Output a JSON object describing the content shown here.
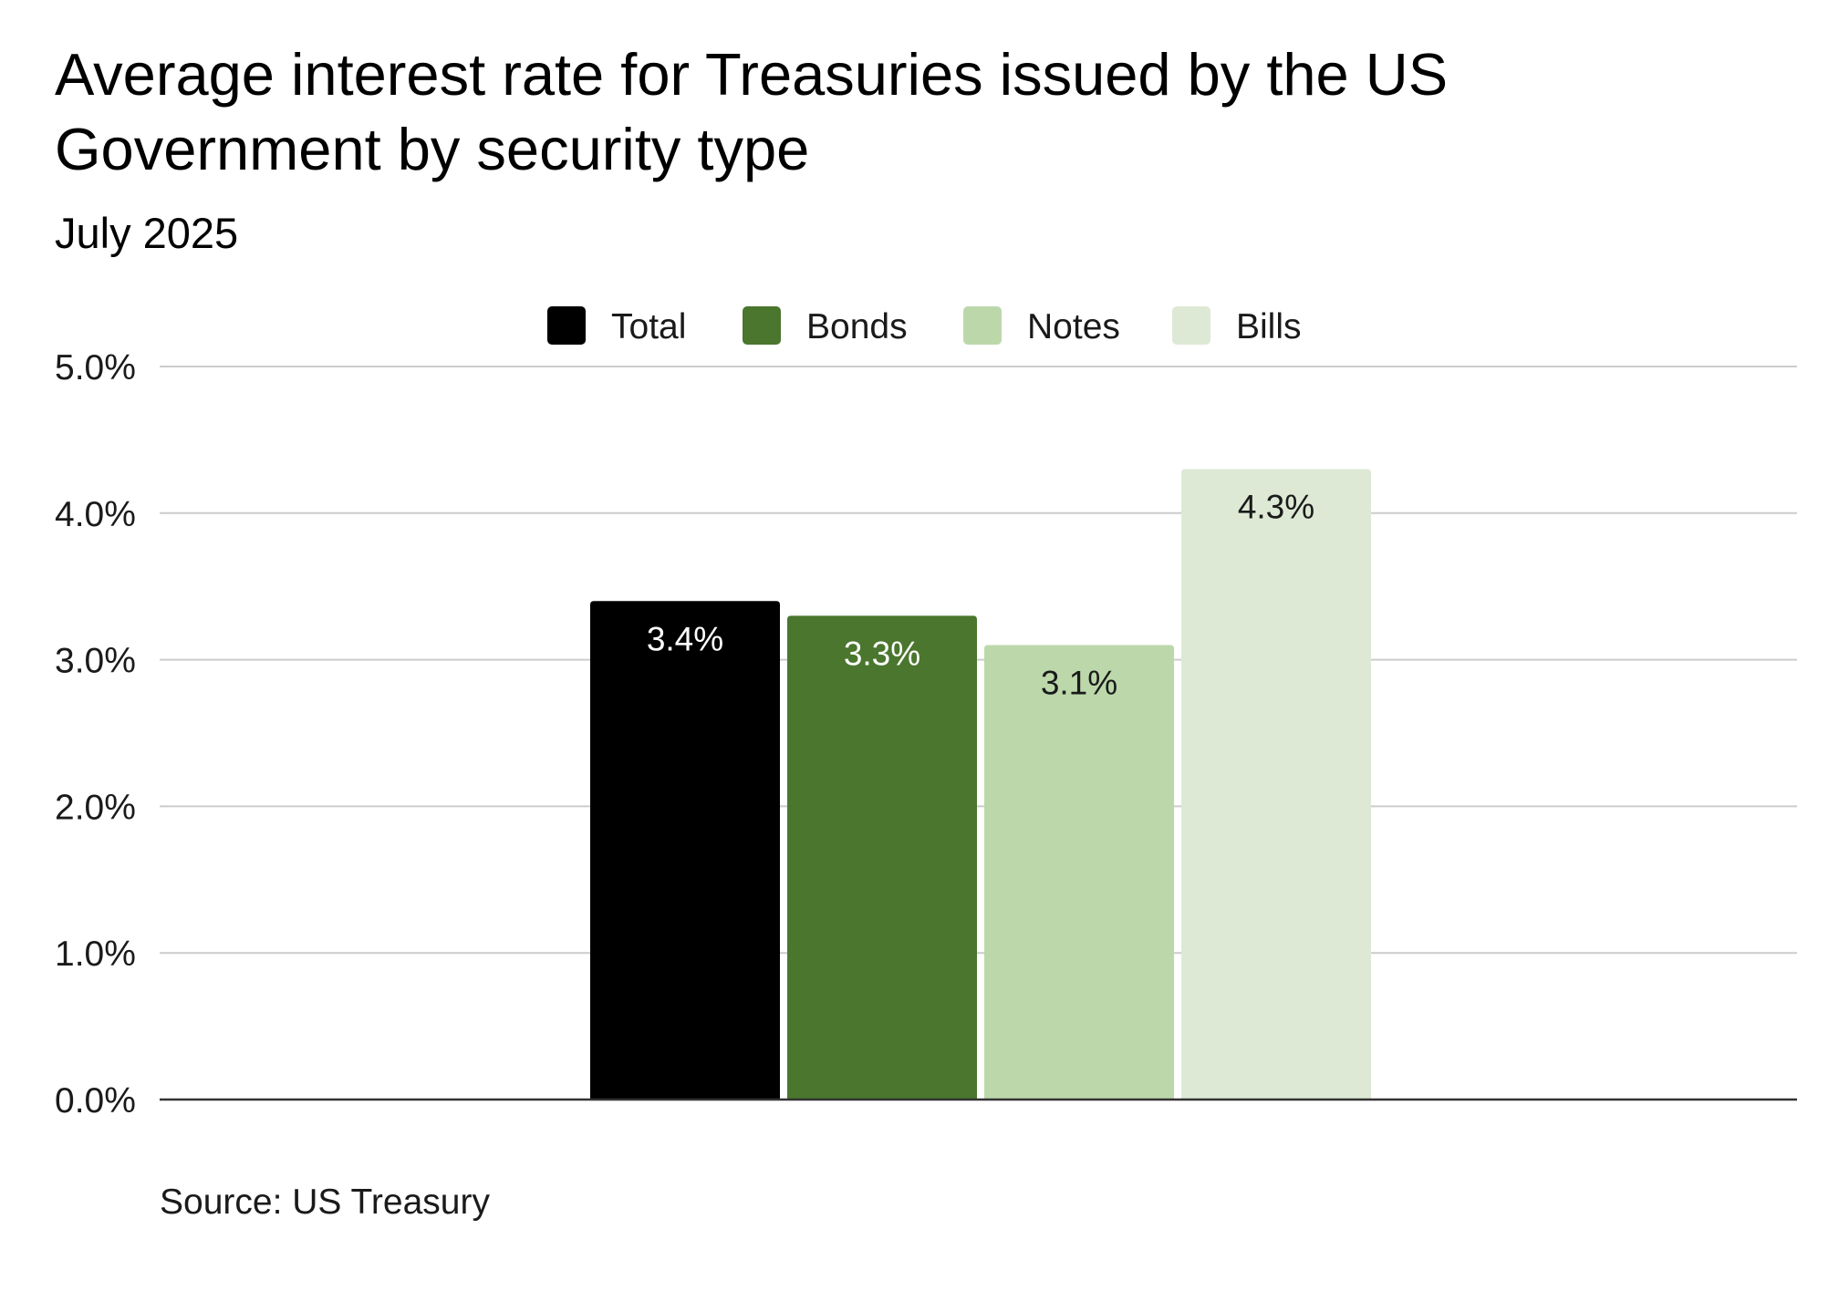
{
  "chart_data": {
    "type": "bar",
    "title_lines": [
      "Average interest rate for Treasuries issued by the US",
      "Government by security type"
    ],
    "subtitle": "July 2025",
    "categories": [
      ""
    ],
    "series": [
      {
        "name": "Total",
        "values": [
          3.4
        ],
        "label": "3.4%",
        "color": "#000000",
        "label_color": "#ffffff"
      },
      {
        "name": "Bonds",
        "values": [
          3.3
        ],
        "label": "3.3%",
        "color": "#4a762e",
        "label_color": "#ffffff"
      },
      {
        "name": "Notes",
        "values": [
          3.1
        ],
        "label": "3.1%",
        "color": "#bcd8ab",
        "label_color": "#1a1a1a"
      },
      {
        "name": "Bills",
        "values": [
          4.3
        ],
        "label": "4.3%",
        "color": "#dde9d5",
        "label_color": "#1a1a1a"
      }
    ],
    "ylim": [
      0,
      5
    ],
    "yticks": [
      0,
      1,
      2,
      3,
      4,
      5
    ],
    "ytick_labels": [
      "0.0%",
      "1.0%",
      "2.0%",
      "3.0%",
      "4.0%",
      "5.0%"
    ],
    "xlabel": "",
    "ylabel": "",
    "legend_position": "top-center",
    "grid": true,
    "source": "Source: US Treasury"
  },
  "colors": {
    "grid": "#cccccc",
    "axis": "#333333",
    "text": "#1a1a1a"
  }
}
